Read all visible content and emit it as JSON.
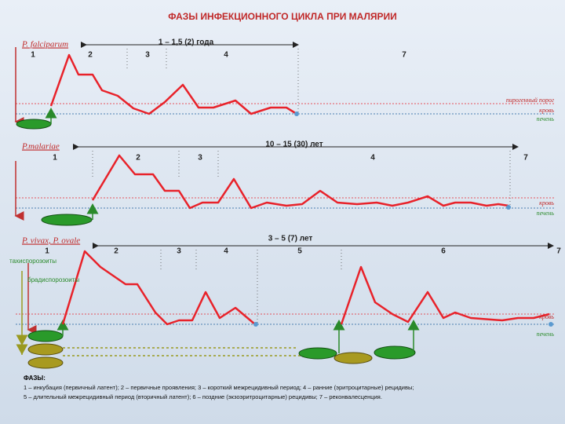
{
  "title": "ФАЗЫ ИНФЕКЦИОННОГО ЦИКЛА ПРИ МАЛЯРИИ",
  "panels": [
    {
      "species": "P. falciparum",
      "duration": "1 – 1,5 (2) года",
      "phases": [
        "1",
        "2",
        "3",
        "4",
        "7"
      ],
      "left_labels": [],
      "labels": [
        "пирогенный порог",
        "кровь",
        "печень"
      ]
    },
    {
      "species": "P.malariae",
      "duration": "10 – 15 (30) лет",
      "phases": [
        "1",
        "2",
        "3",
        "4",
        "7"
      ],
      "left_labels": [],
      "labels": [
        "кровь",
        "печень"
      ]
    },
    {
      "species": "P. vivax, P. ovale",
      "duration": "3 – 5 (7) лет",
      "phases": [
        "1",
        "2",
        "3",
        "4",
        "5",
        "6",
        "7"
      ],
      "left_labels": [
        "тахиспорозоиты",
        "брадиспорозоиты"
      ],
      "labels": [
        "кровь",
        "печень"
      ]
    }
  ],
  "legend": {
    "heading": "ФАЗЫ:",
    "lines": [
      "1 – инкубация (первичный латент);   2 – первичные проявления;   3 – короткий межрецидивный период;   4 – ранние (эритроцитарные) рецидивы;",
      "5 – длительный межрецидивный период (вторичный латент);   6 – поздние (экзоэритроцитарные) рецидивы;   7 – реконвалесценция."
    ]
  }
}
